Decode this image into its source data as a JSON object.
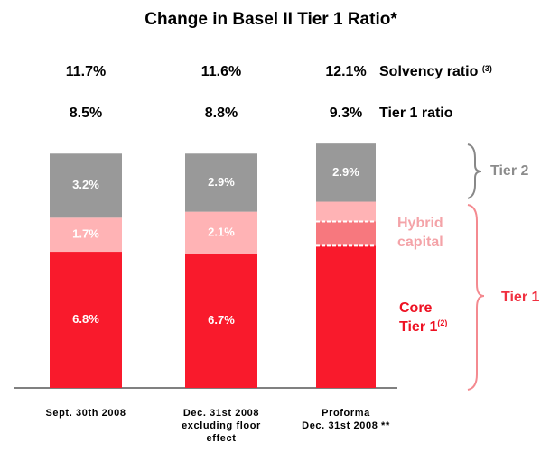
{
  "chart_data": {
    "type": "stacked_bar",
    "title": "Change in Basel II Tier 1 Ratio*",
    "categories": [
      [
        "Sept. 30th 2008"
      ],
      [
        "Dec. 31st 2008",
        "excluding floor",
        "effect"
      ],
      [
        "Proforma",
        "Dec. 31st 2008 **"
      ]
    ],
    "series": [
      {
        "name": [
          "Core",
          "Tier 1"
        ],
        "name_note": "(2)",
        "color": "#f91a2c",
        "values": [
          6.8,
          6.7,
          7.1
        ],
        "value_labels": [
          "6.8%",
          "6.7%",
          null
        ]
      },
      {
        "name": [
          "Hybrid",
          "capital"
        ],
        "color": "#ffb3b5",
        "values": [
          1.7,
          2.1,
          2.2
        ],
        "value_labels": [
          "1.7%",
          "2.1%",
          null
        ]
      },
      {
        "name": [
          "Tier 2"
        ],
        "color": "#999999",
        "values": [
          3.2,
          2.9,
          2.9
        ],
        "value_labels": [
          "3.2%",
          "2.9%",
          "2.9%"
        ]
      }
    ],
    "rows": [
      {
        "label": "Solvency ratio",
        "note": "(3)",
        "values": [
          11.7,
          11.6,
          12.1
        ],
        "value_labels": [
          "11.7%",
          "11.6%",
          "12.1%"
        ]
      },
      {
        "label": "Tier 1 ratio",
        "values": [
          8.5,
          8.8,
          9.3
        ],
        "value_labels": [
          "8.5%",
          "8.8%",
          "9.3%"
        ]
      }
    ],
    "groups": [
      {
        "label": "Tier 2",
        "color": "#8c8c8c"
      },
      {
        "label": "Tier 1",
        "color": "#f03040"
      }
    ]
  }
}
